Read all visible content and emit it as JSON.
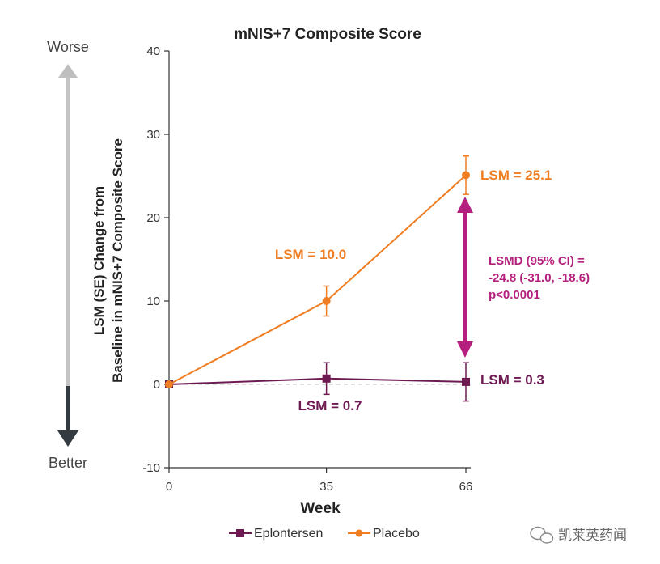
{
  "chart_data": {
    "type": "line",
    "title": "mNIS+7 Composite Score",
    "xlabel": "Week",
    "ylabel_line1": "LSM (SE) Change from",
    "ylabel_line2": "Baseline in mNIS+7 Composite Score",
    "x": [
      0,
      35,
      66
    ],
    "x_tick_labels": [
      "0",
      "35",
      "66"
    ],
    "ylim": [
      -10,
      40
    ],
    "y_ticks": [
      -10,
      0,
      10,
      20,
      30,
      40
    ],
    "series": [
      {
        "name": "Eplontersen",
        "color": "#6e1a52",
        "marker": "square",
        "values": [
          0,
          0.7,
          0.3
        ],
        "error": [
          0,
          1.9,
          2.3
        ]
      },
      {
        "name": "Placebo",
        "color": "#ef7d22",
        "marker": "circle",
        "values": [
          0,
          10.0,
          25.1
        ],
        "error": [
          0,
          1.8,
          2.3
        ]
      }
    ],
    "annotations": {
      "placebo_35": "LSM = 10.0",
      "placebo_66": "LSM = 25.1",
      "eplontersen_35": "LSM = 0.7",
      "eplontersen_66": "LSM = 0.3",
      "lsmd_line1": "LSMD (95% CI) =",
      "lsmd_line2": "-24.8 (-31.0, -18.6)",
      "lsmd_line3": "p<0.0001",
      "lsmd_color": "#b5207e"
    },
    "side_labels": {
      "worse": "Worse",
      "better": "Better"
    },
    "legend": [
      "Eplontersen",
      "Placebo"
    ]
  },
  "watermark": "凯莱英药闻"
}
